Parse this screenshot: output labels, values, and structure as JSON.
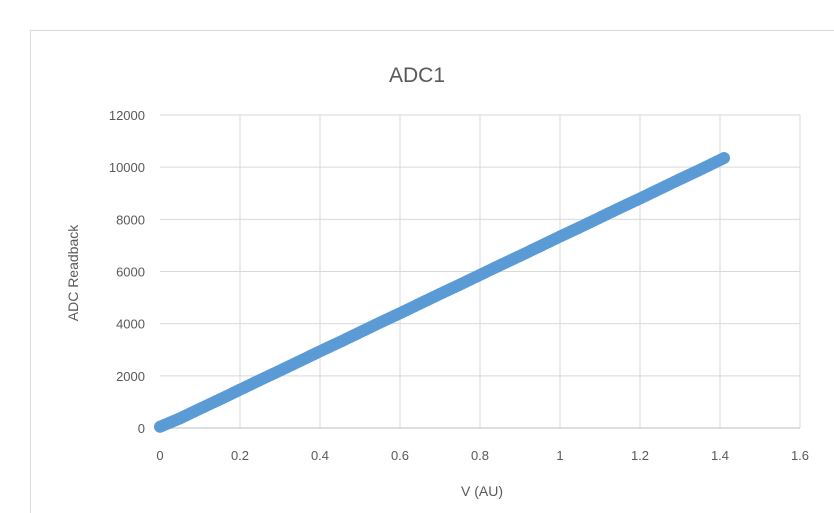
{
  "chart_data": {
    "type": "scatter",
    "title": "ADC1",
    "xlabel": "V (AU)",
    "ylabel": "ADC Readback",
    "xlim": [
      0,
      1.6
    ],
    "ylim": [
      0,
      12000
    ],
    "x_ticks": [
      "0",
      "0.2",
      "0.4",
      "0.6",
      "0.8",
      "1",
      "1.2",
      "1.4",
      "1.6"
    ],
    "y_ticks": [
      "0",
      "2000",
      "4000",
      "6000",
      "8000",
      "10000",
      "12000"
    ],
    "grid": true,
    "legend": "none",
    "series": [
      {
        "color": "#5b9bd5",
        "x": [
          0.0,
          0.05,
          0.1,
          0.15,
          0.2,
          0.25,
          0.3,
          0.35,
          0.4,
          0.45,
          0.5,
          0.55,
          0.6,
          0.65,
          0.7,
          0.75,
          0.8,
          0.85,
          0.9,
          0.95,
          1.0,
          1.05,
          1.1,
          1.15,
          1.2,
          1.25,
          1.3,
          1.35,
          1.41
        ],
        "y": [
          50,
          370,
          740,
          1100,
          1470,
          1840,
          2200,
          2570,
          2940,
          3300,
          3670,
          4040,
          4400,
          4770,
          5140,
          5500,
          5870,
          6240,
          6600,
          6970,
          7340,
          7700,
          8070,
          8440,
          8800,
          9170,
          9540,
          9900,
          10350
        ]
      }
    ]
  }
}
